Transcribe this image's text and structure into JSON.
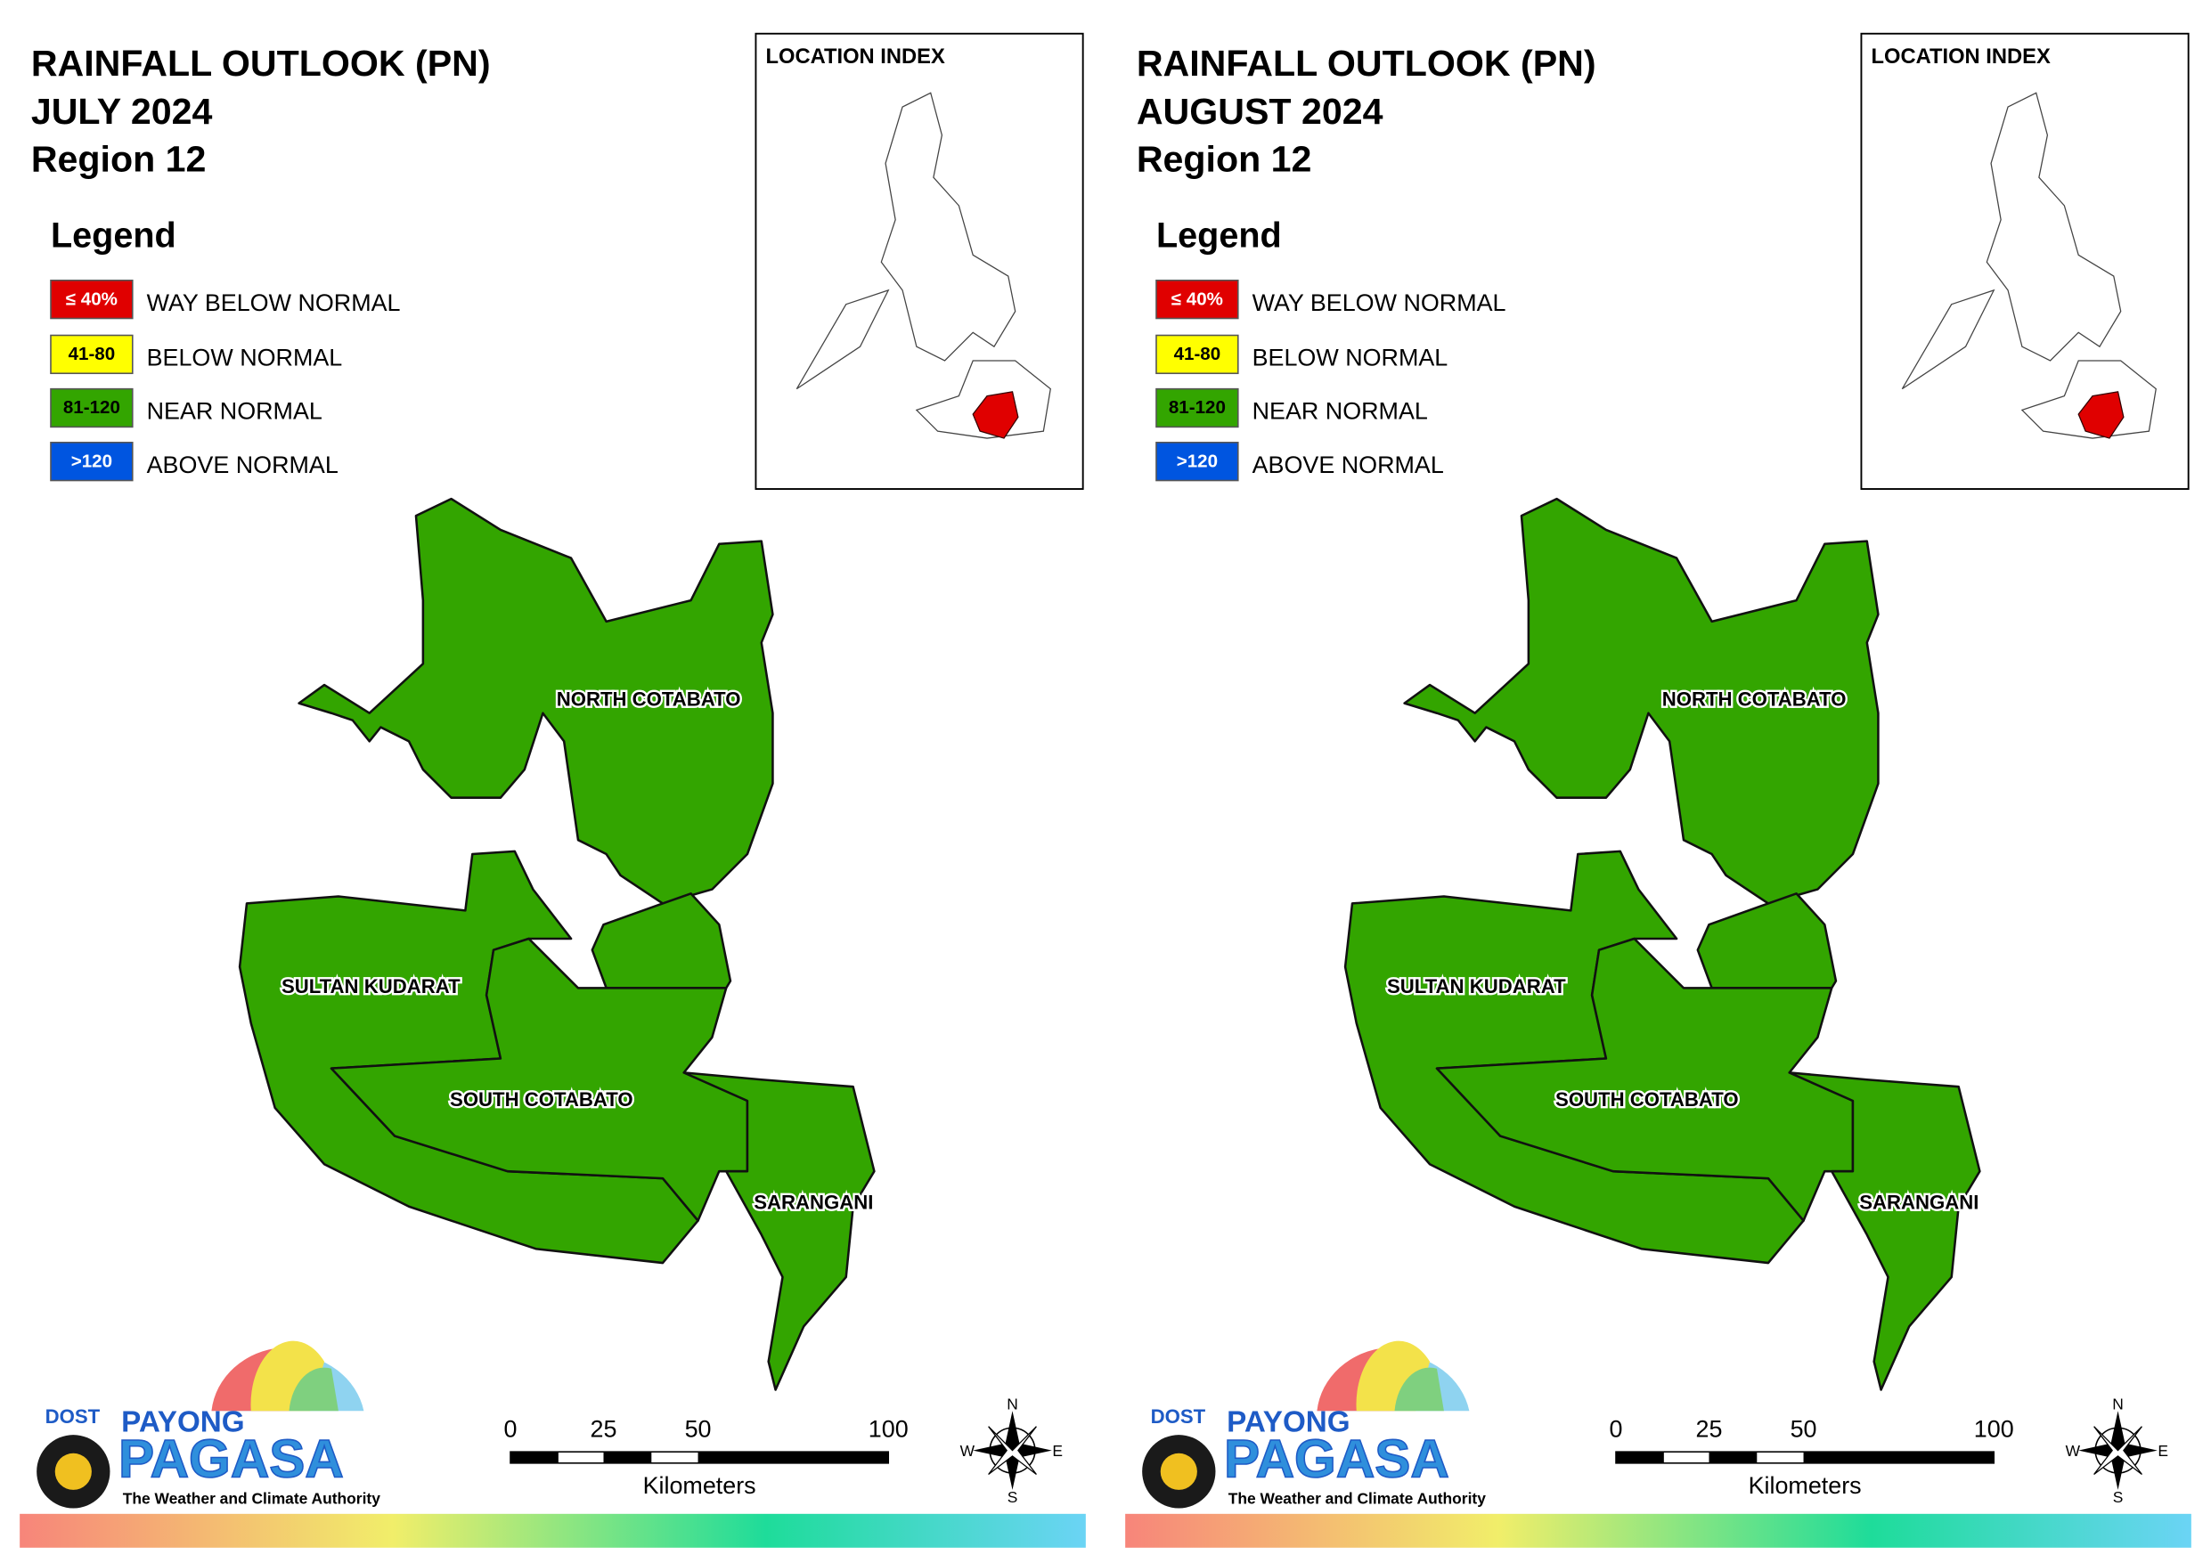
{
  "panels": [
    {
      "title": [
        "RAINFALL OUTLOOK (PN)",
        "JULY 2024",
        "Region 12"
      ],
      "legend_title": "Legend",
      "legend": [
        {
          "code": "≤ 40%",
          "label": "WAY BELOW NORMAL",
          "color": "#e00000"
        },
        {
          "code": "41-80",
          "label": "BELOW NORMAL",
          "color": "#ffff00"
        },
        {
          "code": "81-120",
          "label": "NEAR NORMAL",
          "color": "#33a500"
        },
        {
          "code": ">120",
          "label": "ABOVE NORMAL",
          "color": "#0055e0"
        }
      ],
      "location_index": "LOCATION INDEX",
      "provinces": [
        "NORTH COTABATO",
        "SULTAN KUDARAT",
        "SOUTH COTABATO",
        "SARANGANI"
      ],
      "scale": {
        "ticks": [
          "0",
          "25",
          "50",
          "100"
        ],
        "unit": "Kilometers"
      },
      "compass": [
        "N",
        "E",
        "S",
        "W"
      ],
      "logo": {
        "agency": "DOST",
        "brand_top": "PAYONG",
        "brand": "PAGASA",
        "tagline": "The Weather and Climate Authority"
      }
    },
    {
      "title": [
        "RAINFALL OUTLOOK (PN)",
        "AUGUST 2024",
        "Region 12"
      ],
      "legend_title": "Legend",
      "legend": [
        {
          "code": "≤ 40%",
          "label": "WAY BELOW NORMAL",
          "color": "#e00000"
        },
        {
          "code": "41-80",
          "label": "BELOW NORMAL",
          "color": "#ffff00"
        },
        {
          "code": "81-120",
          "label": "NEAR NORMAL",
          "color": "#33a500"
        },
        {
          "code": ">120",
          "label": "ABOVE NORMAL",
          "color": "#0055e0"
        }
      ],
      "location_index": "LOCATION INDEX",
      "provinces": [
        "NORTH COTABATO",
        "SULTAN KUDARAT",
        "SOUTH COTABATO",
        "SARANGANI"
      ],
      "scale": {
        "ticks": [
          "0",
          "25",
          "50",
          "100"
        ],
        "unit": "Kilometers"
      },
      "compass": [
        "N",
        "E",
        "S",
        "W"
      ],
      "logo": {
        "agency": "DOST",
        "brand_top": "PAYONG",
        "brand": "PAGASA",
        "tagline": "The Weather and Climate Authority"
      }
    }
  ]
}
